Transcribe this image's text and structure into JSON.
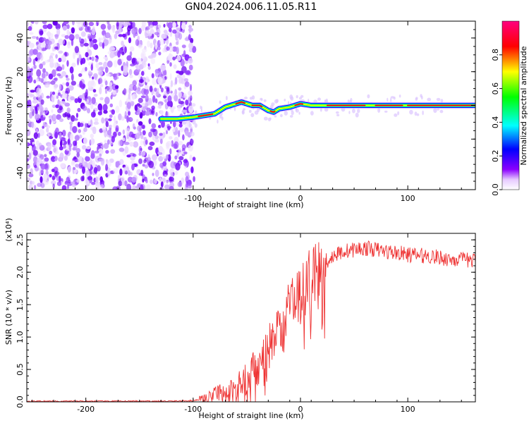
{
  "title": "GN04.2024.006.11.05.R11",
  "chart_data": [
    {
      "type": "heatmap",
      "xlabel": "Height of straight line (km)",
      "ylabel": "Frequency (Hz)",
      "xlim": [
        -255,
        163
      ],
      "ylim": [
        -50,
        50
      ],
      "x_ticks": [
        -200,
        -100,
        0,
        100
      ],
      "y_ticks": [
        -40,
        -20,
        0,
        20,
        40
      ],
      "grid": false,
      "colorbar": {
        "label": "Normalized spectral amplitude",
        "range": [
          0.0,
          1.0
        ],
        "ticks": [
          0.0,
          0.2,
          0.4,
          0.6,
          0.8
        ],
        "colormap": [
          "#ffffff",
          "#8b00ff",
          "#0000ff",
          "#00ffff",
          "#00ff00",
          "#ffff00",
          "#ff0000",
          "#ff007f"
        ]
      },
      "noise_region_x": [
        -255,
        -103
      ],
      "ridge": {
        "x": [
          -130,
          -115,
          -100,
          -90,
          -80,
          -70,
          -60,
          -55,
          -45,
          -38,
          -30,
          -25,
          -20,
          -10,
          0,
          10,
          20,
          40,
          60,
          80,
          100,
          130,
          163
        ],
        "y": [
          -8,
          -8,
          -7,
          -6,
          -5,
          -1,
          1,
          2,
          0,
          0,
          -3,
          -4,
          -2,
          -1,
          1,
          0,
          0,
          0,
          0,
          0,
          0,
          0,
          0
        ]
      }
    },
    {
      "type": "line",
      "xlabel": "Height of straight line (km)",
      "ylabel": "SNR (10 * v/v)",
      "y_multiplier": "(x10⁴)",
      "xlim": [
        -255,
        163
      ],
      "ylim": [
        0,
        2.6
      ],
      "x_ticks": [
        -200,
        -100,
        0,
        100
      ],
      "y_ticks": [
        0.0,
        0.5,
        1.0,
        1.5,
        2.0,
        2.5
      ],
      "grid": false,
      "series": [
        {
          "color": "#ee3333",
          "x": [
            -255,
            -200,
            -150,
            -120,
            -100,
            -90,
            -80,
            -70,
            -60,
            -50,
            -40,
            -30,
            -20,
            -10,
            0,
            10,
            20,
            30,
            40,
            50,
            60,
            70,
            80,
            90,
            100,
            120,
            140,
            163
          ],
          "y": [
            0.01,
            0.01,
            0.01,
            0.01,
            0.02,
            0.05,
            0.1,
            0.15,
            0.2,
            0.35,
            0.55,
            0.8,
            1.1,
            1.4,
            1.7,
            1.9,
            2.1,
            2.25,
            2.32,
            2.35,
            2.37,
            2.35,
            2.32,
            2.3,
            2.27,
            2.25,
            2.2,
            2.18
          ]
        }
      ]
    }
  ]
}
